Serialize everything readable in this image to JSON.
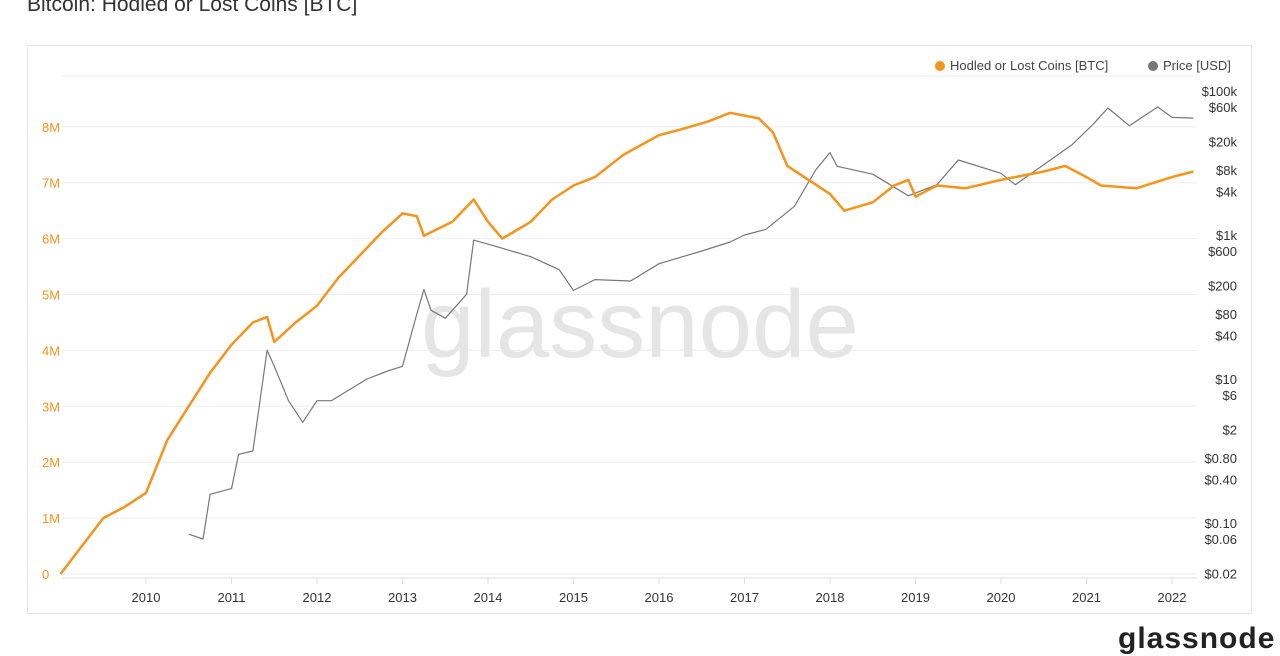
{
  "title": "Bitcoin: Hodled or Lost Coins [BTC]",
  "watermark": "glassnode",
  "logo": "glassnode",
  "chart_data": {
    "type": "line",
    "title": "Bitcoin: Hodled or Lost Coins [BTC]",
    "legend_position": "top-right",
    "grid": true,
    "x_ticks": [
      "2010",
      "2011",
      "2012",
      "2013",
      "2014",
      "2015",
      "2016",
      "2017",
      "2018",
      "2019",
      "2020",
      "2021",
      "2022"
    ],
    "y_left": {
      "ticks": [
        "0",
        "1M",
        "2M",
        "3M",
        "4M",
        "5M",
        "6M",
        "7M",
        "8M"
      ],
      "range": [
        0,
        8000000
      ],
      "color": "#f7931a"
    },
    "y_right": {
      "scale": "log",
      "ticks": [
        "$100k",
        "$60k",
        "$20k",
        "$8k",
        "$4k",
        "$1k",
        "$600",
        "$200",
        "$80",
        "$40",
        "$10",
        "$6",
        "$2",
        "$0.80",
        "$0.40",
        "$0.10",
        "$0.06",
        "$0.02"
      ],
      "range": [
        0.02,
        100000
      ]
    },
    "series": [
      {
        "name": "Hodled or Lost Coins [BTC]",
        "axis": "left",
        "color": "#f7931a",
        "points": [
          [
            "2009-01",
            0
          ],
          [
            "2009-07",
            1000000
          ],
          [
            "2009-10",
            1200000
          ],
          [
            "2010-01",
            1450000
          ],
          [
            "2010-04",
            2400000
          ],
          [
            "2010-08",
            3200000
          ],
          [
            "2010-10",
            3600000
          ],
          [
            "2011-01",
            4100000
          ],
          [
            "2011-04",
            4500000
          ],
          [
            "2011-06",
            4600000
          ],
          [
            "2011-07",
            4150000
          ],
          [
            "2011-10",
            4500000
          ],
          [
            "2012-01",
            4800000
          ],
          [
            "2012-04",
            5300000
          ],
          [
            "2012-07",
            5700000
          ],
          [
            "2012-10",
            6100000
          ],
          [
            "2013-01",
            6450000
          ],
          [
            "2013-03",
            6400000
          ],
          [
            "2013-04",
            6050000
          ],
          [
            "2013-08",
            6300000
          ],
          [
            "2013-11",
            6700000
          ],
          [
            "2014-01",
            6300000
          ],
          [
            "2014-03",
            6000000
          ],
          [
            "2014-07",
            6300000
          ],
          [
            "2014-10",
            6700000
          ],
          [
            "2015-01",
            6950000
          ],
          [
            "2015-04",
            7100000
          ],
          [
            "2015-08",
            7500000
          ],
          [
            "2016-01",
            7850000
          ],
          [
            "2016-04",
            7950000
          ],
          [
            "2016-08",
            8100000
          ],
          [
            "2016-11",
            8250000
          ],
          [
            "2017-03",
            8150000
          ],
          [
            "2017-05",
            7900000
          ],
          [
            "2017-07",
            7300000
          ],
          [
            "2017-10",
            7050000
          ],
          [
            "2018-01",
            6800000
          ],
          [
            "2018-03",
            6500000
          ],
          [
            "2018-07",
            6650000
          ],
          [
            "2018-10",
            6950000
          ],
          [
            "2018-12",
            7050000
          ],
          [
            "2019-01",
            6750000
          ],
          [
            "2019-04",
            6950000
          ],
          [
            "2019-08",
            6900000
          ],
          [
            "2020-01",
            7050000
          ],
          [
            "2020-07",
            7200000
          ],
          [
            "2020-10",
            7300000
          ],
          [
            "2021-01",
            7100000
          ],
          [
            "2021-03",
            6950000
          ],
          [
            "2021-08",
            6900000
          ],
          [
            "2022-01",
            7100000
          ],
          [
            "2022-04",
            7200000
          ]
        ]
      },
      {
        "name": "Price [USD]",
        "axis": "right",
        "color": "#777777",
        "points": [
          [
            "2010-07",
            0.07
          ],
          [
            "2010-09",
            0.06
          ],
          [
            "2010-10",
            0.25
          ],
          [
            "2011-01",
            0.3
          ],
          [
            "2011-02",
            0.9
          ],
          [
            "2011-04",
            1.0
          ],
          [
            "2011-06",
            25
          ],
          [
            "2011-07",
            15
          ],
          [
            "2011-09",
            5
          ],
          [
            "2011-11",
            2.5
          ],
          [
            "2012-01",
            5
          ],
          [
            "2012-03",
            5
          ],
          [
            "2012-08",
            10
          ],
          [
            "2012-11",
            13
          ],
          [
            "2013-01",
            15
          ],
          [
            "2013-03",
            80
          ],
          [
            "2013-04",
            175
          ],
          [
            "2013-05",
            90
          ],
          [
            "2013-07",
            70
          ],
          [
            "2013-10",
            150
          ],
          [
            "2013-11",
            850
          ],
          [
            "2014-02",
            700
          ],
          [
            "2014-07",
            500
          ],
          [
            "2014-11",
            330
          ],
          [
            "2015-01",
            170
          ],
          [
            "2015-04",
            240
          ],
          [
            "2015-09",
            230
          ],
          [
            "2016-01",
            400
          ],
          [
            "2016-07",
            600
          ],
          [
            "2016-11",
            800
          ],
          [
            "2017-01",
            1000
          ],
          [
            "2017-04",
            1200
          ],
          [
            "2017-08",
            2500
          ],
          [
            "2017-11",
            8000
          ],
          [
            "2018-01",
            14000
          ],
          [
            "2018-02",
            9000
          ],
          [
            "2018-07",
            7000
          ],
          [
            "2018-12",
            3500
          ],
          [
            "2019-04",
            5000
          ],
          [
            "2019-07",
            11000
          ],
          [
            "2020-01",
            7200
          ],
          [
            "2020-03",
            5000
          ],
          [
            "2020-07",
            9500
          ],
          [
            "2020-11",
            18000
          ],
          [
            "2021-02",
            35000
          ],
          [
            "2021-04",
            58000
          ],
          [
            "2021-07",
            33000
          ],
          [
            "2021-11",
            60000
          ],
          [
            "2022-01",
            43000
          ],
          [
            "2022-04",
            42000
          ]
        ]
      }
    ]
  }
}
